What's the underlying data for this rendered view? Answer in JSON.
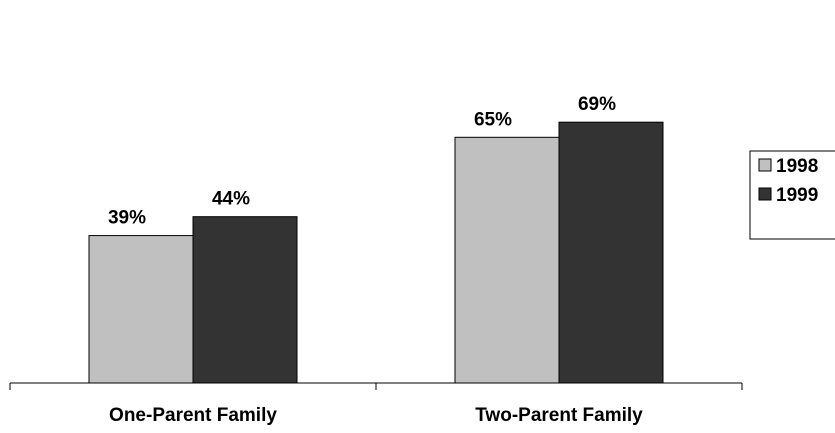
{
  "chart_data": {
    "type": "bar",
    "categories": [
      "One-Parent Family",
      "Two-Parent Family"
    ],
    "series": [
      {
        "name": "1998",
        "values": [
          39,
          65
        ],
        "labels": [
          "39%",
          "65%"
        ],
        "color": "#c0c0c0"
      },
      {
        "name": "1999",
        "values": [
          44,
          69
        ],
        "labels": [
          "44%",
          "69%"
        ],
        "color": "#333333"
      }
    ],
    "ylim": [
      0,
      100
    ],
    "grid": false,
    "legend": "right"
  }
}
